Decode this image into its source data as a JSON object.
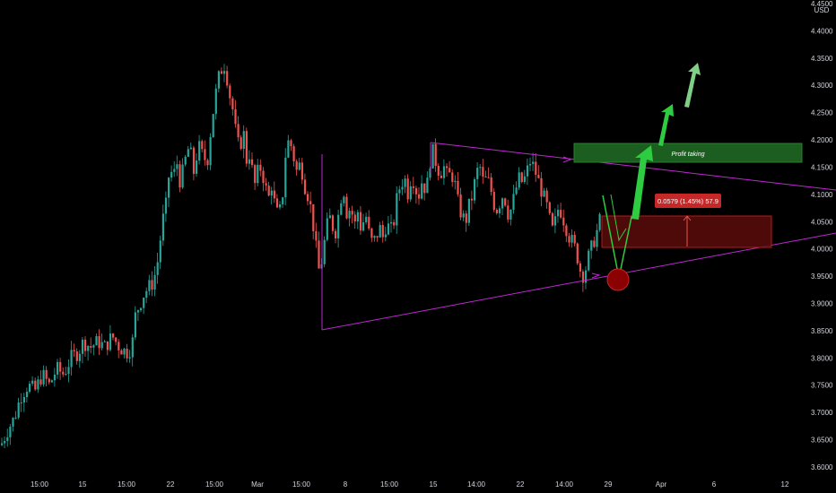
{
  "chart_data": {
    "type": "candlestick",
    "currency": "USD",
    "y_axis": {
      "ticks": [
        "4.4500",
        "4.4000",
        "4.3500",
        "4.3000",
        "4.2500",
        "4.2000",
        "4.1500",
        "4.1000",
        "4.0500",
        "4.0000",
        "3.9500",
        "3.9000",
        "3.8500",
        "3.8000",
        "3.7500",
        "3.7000",
        "3.6500",
        "3.6000"
      ],
      "ylim": [
        3.59,
        4.45
      ]
    },
    "x_axis": {
      "ticks": [
        "15:00",
        "15",
        "15:00",
        "22",
        "15:00",
        "Mar",
        "15:00",
        "8",
        "15:00",
        "15",
        "14:00",
        "22",
        "14:00",
        "29",
        "Apr",
        "6",
        "12"
      ]
    },
    "price_path": [
      [
        0,
        3.64
      ],
      [
        8,
        3.67
      ],
      [
        15,
        3.69
      ],
      [
        22,
        3.73
      ],
      [
        30,
        3.75
      ],
      [
        38,
        3.74
      ],
      [
        46,
        3.77
      ],
      [
        54,
        3.75
      ],
      [
        62,
        3.78
      ],
      [
        70,
        3.77
      ],
      [
        78,
        3.8
      ],
      [
        86,
        3.81
      ],
      [
        92,
        3.83
      ],
      [
        100,
        3.82
      ],
      [
        108,
        3.83
      ],
      [
        116,
        3.82
      ],
      [
        124,
        3.84
      ],
      [
        132,
        3.82
      ],
      [
        140,
        3.81
      ],
      [
        146,
        3.82
      ],
      [
        150,
        3.88
      ],
      [
        155,
        3.9
      ],
      [
        160,
        3.92
      ],
      [
        165,
        3.93
      ],
      [
        170,
        3.94
      ],
      [
        175,
        3.98
      ],
      [
        180,
        4.05
      ],
      [
        184,
        4.08
      ],
      [
        188,
        4.15
      ],
      [
        192,
        4.13
      ],
      [
        196,
        4.16
      ],
      [
        200,
        4.12
      ],
      [
        205,
        4.16
      ],
      [
        210,
        4.19
      ],
      [
        215,
        4.14
      ],
      [
        220,
        4.19
      ],
      [
        225,
        4.17
      ],
      [
        230,
        4.16
      ],
      [
        234,
        4.22
      ],
      [
        238,
        4.27
      ],
      [
        242,
        4.31
      ],
      [
        246,
        4.33
      ],
      [
        250,
        4.34
      ],
      [
        254,
        4.29
      ],
      [
        258,
        4.26
      ],
      [
        262,
        4.21
      ],
      [
        266,
        4.18
      ],
      [
        270,
        4.22
      ],
      [
        274,
        4.16
      ],
      [
        278,
        4.18
      ],
      [
        282,
        4.11
      ],
      [
        286,
        4.14
      ],
      [
        290,
        4.15
      ],
      [
        294,
        4.12
      ],
      [
        298,
        4.09
      ],
      [
        302,
        4.12
      ],
      [
        306,
        4.07
      ],
      [
        310,
        4.06
      ],
      [
        314,
        4.1
      ],
      [
        318,
        4.19
      ],
      [
        322,
        4.2
      ],
      [
        326,
        4.17
      ],
      [
        330,
        4.14
      ],
      [
        334,
        4.16
      ],
      [
        338,
        4.12
      ],
      [
        342,
        4.1
      ],
      [
        346,
        4.07
      ],
      [
        350,
        4.02
      ],
      [
        354,
        3.96
      ],
      [
        358,
        3.98
      ],
      [
        362,
        4.03
      ],
      [
        366,
        4.06
      ],
      [
        370,
        4.04
      ],
      [
        374,
        4.03
      ],
      [
        378,
        4.09
      ],
      [
        382,
        4.11
      ],
      [
        386,
        4.06
      ],
      [
        390,
        4.08
      ],
      [
        394,
        4.04
      ],
      [
        398,
        4.07
      ],
      [
        402,
        4.03
      ],
      [
        406,
        4.07
      ],
      [
        410,
        4.03
      ],
      [
        414,
        4.01
      ],
      [
        418,
        4.02
      ],
      [
        422,
        4.04
      ],
      [
        426,
        4.02
      ],
      [
        430,
        4.05
      ],
      [
        434,
        4.03
      ],
      [
        438,
        4.05
      ],
      [
        442,
        4.1
      ],
      [
        446,
        4.12
      ],
      [
        450,
        4.13
      ],
      [
        454,
        4.1
      ],
      [
        458,
        4.14
      ],
      [
        462,
        4.11
      ],
      [
        466,
        4.1
      ],
      [
        470,
        4.13
      ],
      [
        474,
        4.1
      ],
      [
        478,
        4.16
      ],
      [
        482,
        4.18
      ],
      [
        486,
        4.15
      ],
      [
        490,
        4.14
      ],
      [
        494,
        4.15
      ],
      [
        498,
        4.13
      ],
      [
        502,
        4.14
      ],
      [
        506,
        4.12
      ],
      [
        510,
        4.08
      ],
      [
        514,
        4.06
      ],
      [
        518,
        4.05
      ],
      [
        522,
        4.08
      ],
      [
        526,
        4.1
      ],
      [
        530,
        4.14
      ],
      [
        534,
        4.15
      ],
      [
        538,
        4.12
      ],
      [
        542,
        4.13
      ],
      [
        546,
        4.11
      ],
      [
        550,
        4.08
      ],
      [
        554,
        4.07
      ],
      [
        558,
        4.1
      ],
      [
        562,
        4.09
      ],
      [
        566,
        4.06
      ],
      [
        570,
        4.08
      ],
      [
        574,
        4.11
      ],
      [
        578,
        4.13
      ],
      [
        582,
        4.12
      ],
      [
        586,
        4.14
      ],
      [
        590,
        4.16
      ],
      [
        594,
        4.15
      ],
      [
        598,
        4.13
      ],
      [
        602,
        4.11
      ],
      [
        606,
        4.09
      ],
      [
        610,
        4.07
      ],
      [
        614,
        4.03
      ],
      [
        618,
        4.05
      ],
      [
        622,
        4.08
      ],
      [
        626,
        4.06
      ],
      [
        630,
        4.04
      ],
      [
        634,
        4.02
      ],
      [
        638,
        4.01
      ],
      [
        642,
        3.99
      ],
      [
        646,
        3.96
      ],
      [
        650,
        3.95
      ],
      [
        654,
        3.98
      ],
      [
        658,
        4.0
      ],
      [
        662,
        4.02
      ],
      [
        666,
        4.04
      ],
      [
        670,
        4.07
      ]
    ],
    "annotations": {
      "profit_label": "Profit taking",
      "measure_label": "0.0579 (1.45%) 57.9"
    },
    "colors": {
      "up": "#26a69a",
      "down": "#ef5350",
      "triangle": "#c026d3",
      "profit_box": "#1b5e20",
      "range_box": "#5c0a0a",
      "range_border": "#b71c1c",
      "forecast": "#2ecc40",
      "label_red": "#c62828"
    }
  }
}
